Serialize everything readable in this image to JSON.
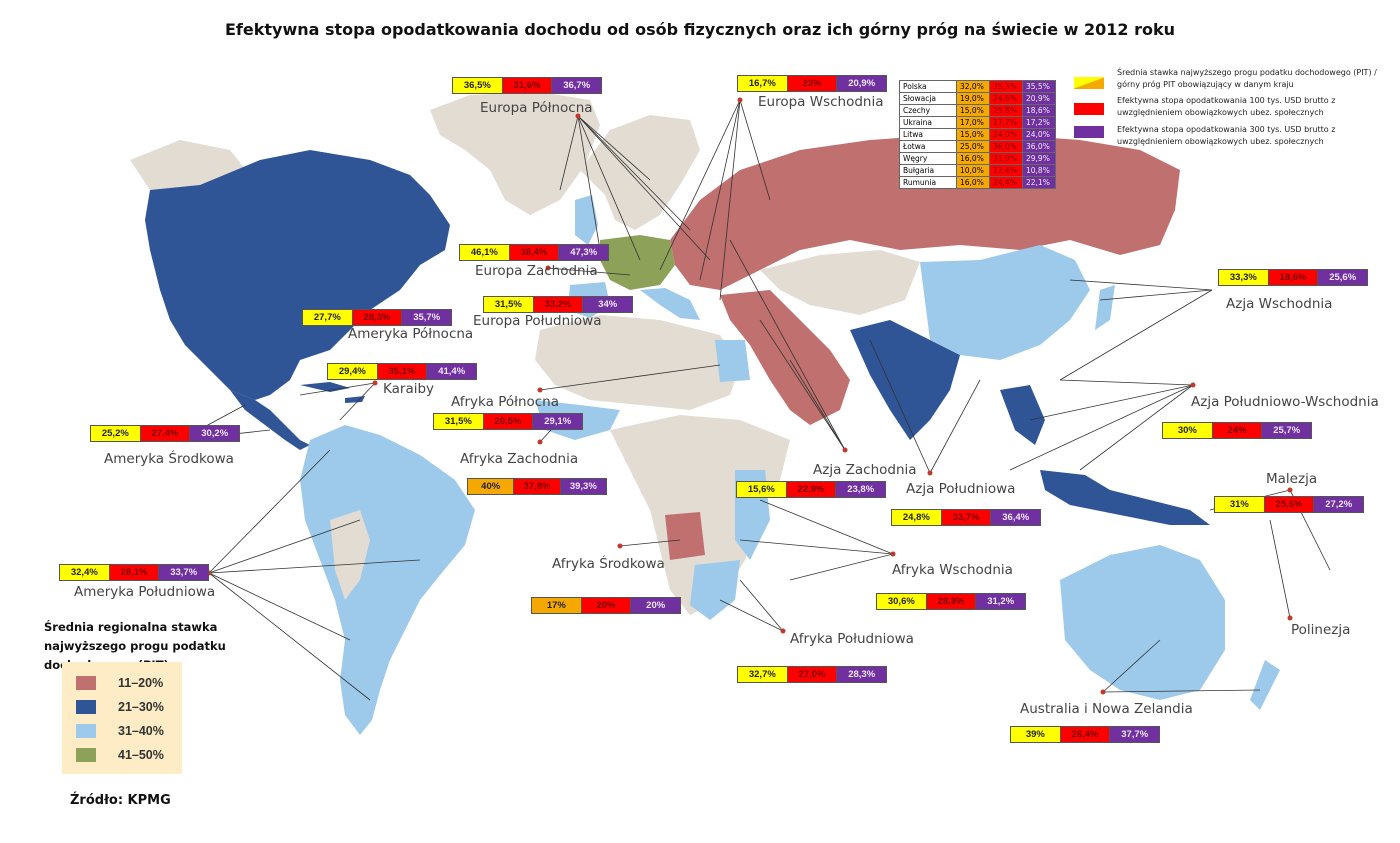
{
  "title": "Efektywna stopa opodatkowania dochodu od osób fizycznych oraz ich górny próg na świecie w 2012 roku",
  "colors": {
    "cat_11_20": "#c0706e",
    "cat_21_30": "#2f5597",
    "cat_31_40": "#9dc9ea",
    "cat_41_50": "#8da258",
    "no_data": "#e2dcd3",
    "pit_top": "#ffff00",
    "eff_100k": "#ff0000",
    "eff_300k": "#7030a0"
  },
  "regions": [
    {
      "name": "Europa Północna",
      "pit": "36,5%",
      "eff100": "31,6%",
      "eff300": "36,7%"
    },
    {
      "name": "Europa Wschodnia",
      "pit": "16,7%",
      "eff100": "23%",
      "eff300": "20,9%"
    },
    {
      "name": "Europa Zachodnia",
      "pit": "46,1%",
      "eff100": "38,4%",
      "eff300": "47,3%"
    },
    {
      "name": "Europa Południowa",
      "pit": "31,5%",
      "eff100": "33,2%",
      "eff300": "34%"
    },
    {
      "name": "Ameryka Północna",
      "pit": "27,7%",
      "eff100": "28,3%",
      "eff300": "35,7%"
    },
    {
      "name": "Karaiby",
      "pit": "29,4%",
      "eff100": "35,1%",
      "eff300": "41,4%"
    },
    {
      "name": "Ameryka Środkowa",
      "pit": "25,2%",
      "eff100": "27,4%",
      "eff300": "30,2%"
    },
    {
      "name": "Afryka Północna",
      "pit": "31,5%",
      "eff100": "20,5%",
      "eff300": "29,1%"
    },
    {
      "name": "Afryka Zachodnia",
      "pit": "40%",
      "eff100": "37,8%",
      "eff300": "39,3%"
    },
    {
      "name": "Afryka Środkowa",
      "pit": "17%",
      "eff100": "20%",
      "eff300": "20%"
    },
    {
      "name": "Afryka Wschodnia",
      "pit": "30,6%",
      "eff100": "28,9%",
      "eff300": "31,2%"
    },
    {
      "name": "Afryka Południowa",
      "pit": "32,7%",
      "eff100": "27,0%",
      "eff300": "28,3%"
    },
    {
      "name": "Ameryka Południowa",
      "pit": "32,4%",
      "eff100": "28,1%",
      "eff300": "33,7%"
    },
    {
      "name": "Azja Zachodnia",
      "pit": "15,6%",
      "eff100": "22,9%",
      "eff300": "23,8%"
    },
    {
      "name": "Azja Południowa",
      "pit": "24,8%",
      "eff100": "33,7%",
      "eff300": "36,4%"
    },
    {
      "name": "Azja Wschodnia",
      "pit": "33,3%",
      "eff100": "18,6%",
      "eff300": "25,6%"
    },
    {
      "name": "Azja Południowo-Wschodnia",
      "pit": "30%",
      "eff100": "24%",
      "eff300": "25,7%"
    },
    {
      "name": "Malezja",
      "pit": "31%",
      "eff100": "25,6%",
      "eff300": "27,2%"
    },
    {
      "name": "Polinezja",
      "pit": "",
      "eff100": "",
      "eff300": ""
    },
    {
      "name": "Australia i Nowa Zelandia",
      "pit": "39%",
      "eff100": "26,4%",
      "eff300": "37,7%"
    }
  ],
  "countries_table": [
    {
      "name": "Polska",
      "pit": "32,0%",
      "eff100": "35,3%",
      "eff300": "35,5%"
    },
    {
      "name": "Słowacja",
      "pit": "19,0%",
      "eff100": "24,6%",
      "eff300": "20,9%"
    },
    {
      "name": "Czechy",
      "pit": "15,0%",
      "eff100": "25,8%",
      "eff300": "18,6%"
    },
    {
      "name": "Ukraina",
      "pit": "17,0%",
      "eff100": "17,7%",
      "eff300": "17,2%"
    },
    {
      "name": "Litwa",
      "pit": "15,0%",
      "eff100": "24,0%",
      "eff300": "24,0%"
    },
    {
      "name": "Łotwa",
      "pit": "25,0%",
      "eff100": "36,0%",
      "eff300": "36,0%"
    },
    {
      "name": "Węgry",
      "pit": "16,0%",
      "eff100": "31,9%",
      "eff300": "29,9%"
    },
    {
      "name": "Bułgaria",
      "pit": "10,0%",
      "eff100": "12,4%",
      "eff300": "10,8%"
    },
    {
      "name": "Rumunia",
      "pit": "16,0%",
      "eff100": "24,4%",
      "eff300": "22,1%"
    }
  ],
  "key": {
    "pit": "Średnia stawka najwyższego progu podatku dochodowego (PIT) / górny próg PIT obowiązujący w danym kraju",
    "eff100": "Efektywna stopa opodatkowania 100 tys. USD brutto z uwzględnieniem obowiązkowych ubez. społecznych",
    "eff300": "Efektywna stopa opodatkowania 300 tys. USD brutto z uwzględnieniem obowiązkowych ubez. społecznych"
  },
  "legend": {
    "title": "Średnia regionalna stawka najwyższego progu podatku dochodowego (PIT)",
    "items": [
      {
        "label": "11–20%",
        "color": "#c0706e"
      },
      {
        "label": "21–30%",
        "color": "#2f5597"
      },
      {
        "label": "31–40%",
        "color": "#9dc9ea"
      },
      {
        "label": "41–50%",
        "color": "#8da258"
      }
    ]
  },
  "source": "Źródło: KPMG"
}
